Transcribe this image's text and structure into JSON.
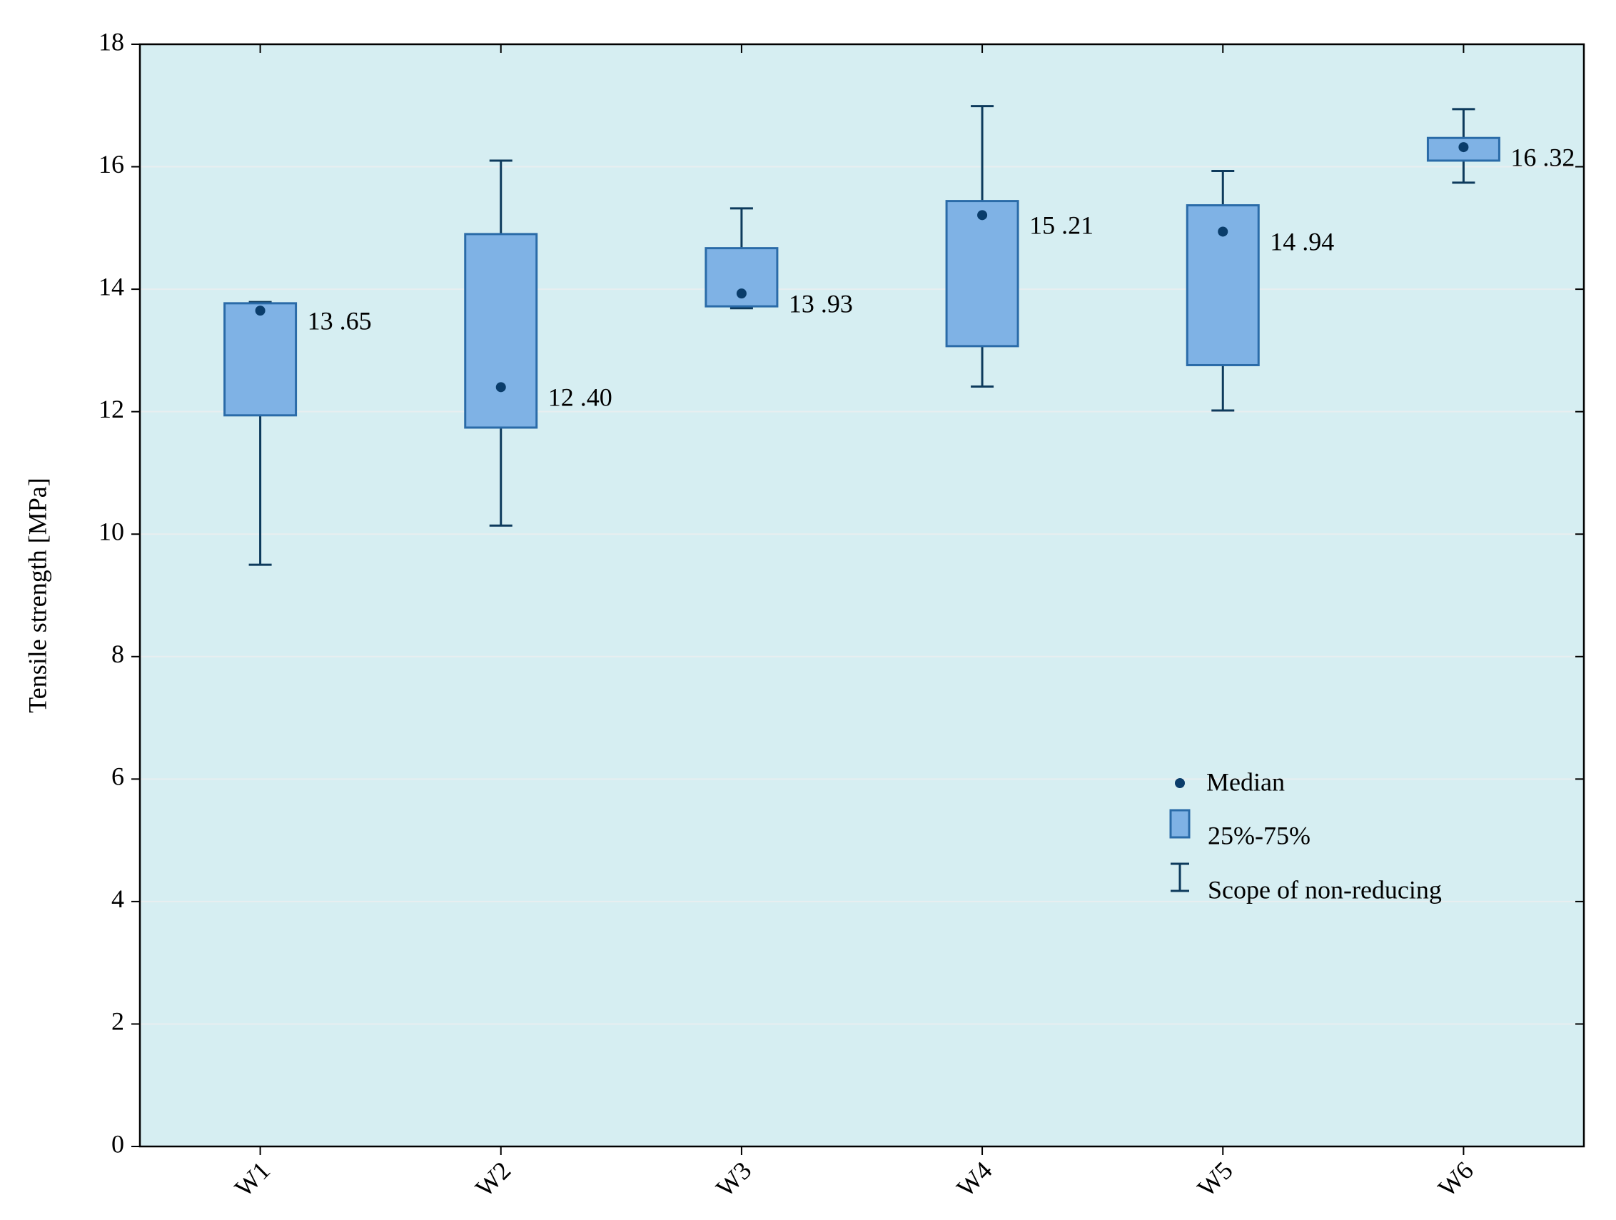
{
  "chart_data": {
    "type": "box",
    "y_label": "Tensile strength [MPa]",
    "categories": [
      "W1",
      "W2",
      "W3",
      "W4",
      "W5",
      "W6"
    ],
    "min": [
      9.5,
      10.14,
      13.69,
      12.41,
      12.02,
      15.74
    ],
    "q1": [
      11.94,
      11.74,
      13.72,
      13.07,
      12.76,
      16.1
    ],
    "median": [
      13.65,
      12.4,
      13.93,
      15.21,
      14.94,
      16.32
    ],
    "median_labels": [
      "13 .65",
      "12 .40",
      "13 .93",
      "15 .21",
      "14 .94",
      "16 .32"
    ],
    "q3": [
      13.77,
      14.9,
      14.67,
      15.44,
      15.37,
      16.47
    ],
    "max": [
      13.79,
      16.1,
      15.32,
      16.99,
      15.93,
      16.94
    ],
    "box_color": "#7fb2e5",
    "box_edge_color": "#2a6ba8",
    "whisker_color": "#0d3a5c",
    "median_color": "#0a3d6b",
    "ylim": [
      0,
      18
    ],
    "yticks": [
      0,
      2,
      4,
      6,
      8,
      10,
      12,
      14,
      16,
      18
    ],
    "grid": true,
    "legend": {
      "median": "Median",
      "box": "25%-75%",
      "whisker": "Scope of non-reducing"
    }
  }
}
